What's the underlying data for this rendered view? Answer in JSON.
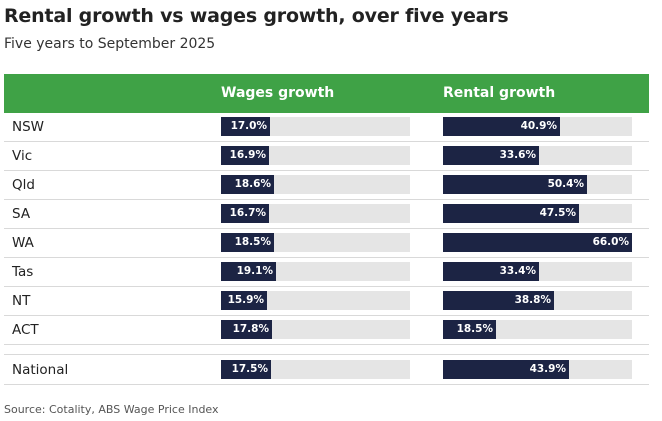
{
  "title": "Rental growth vs wages growth, over five years",
  "subtitle": "Five years to September 2025",
  "source": "Source: Cotality, ABS Wage Price Index",
  "colors": {
    "header": "#3fa246",
    "bar": "#1c2444",
    "track": "#e5e5e5"
  },
  "chart_data": {
    "type": "bar",
    "title": "Rental growth vs wages growth, over five years",
    "subtitle": "Five years to September 2025",
    "categories": [
      "NSW",
      "Vic",
      "Qld",
      "SA",
      "WA",
      "Tas",
      "NT",
      "ACT",
      "National"
    ],
    "series": [
      {
        "name": "Wages growth",
        "values": [
          17.0,
          16.9,
          18.6,
          16.7,
          18.5,
          19.1,
          15.9,
          17.8,
          17.5
        ],
        "labels": [
          "17.0%",
          "16.9%",
          "18.6%",
          "16.7%",
          "18.5%",
          "19.1%",
          "15.9%",
          "17.8%",
          "17.5%"
        ]
      },
      {
        "name": "Rental growth",
        "values": [
          40.9,
          33.6,
          50.4,
          47.5,
          66.0,
          33.4,
          38.8,
          18.5,
          43.9
        ],
        "labels": [
          "40.9%",
          "33.6%",
          "50.4%",
          "47.5%",
          "66.0%",
          "33.4%",
          "38.8%",
          "18.5%",
          "43.9%"
        ]
      }
    ],
    "xlim": [
      0,
      66.0
    ]
  }
}
